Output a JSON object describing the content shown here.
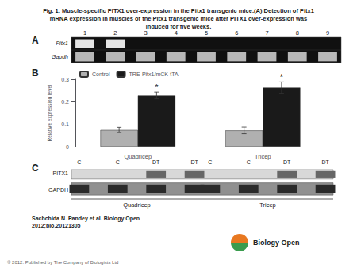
{
  "chart_data": {
    "type": "bar",
    "title": "Fig. 1. Muscle-specific PITX1 over-expression in the Pitx1 transgenic mice.(A) Detection of Pitx1\nmRNA expression in muscles of the Pitx1 transgenic mice after PITX1 over-expression was\ninduced for five weeks.",
    "categories": [
      "Quadricep",
      "Tricep"
    ],
    "series": [
      {
        "name": "Control",
        "color": "#b0b0b0",
        "values": [
          0.075,
          0.073
        ],
        "errors": [
          0.012,
          0.015
        ]
      },
      {
        "name": "TRE-Pitx1/mCK-tTA",
        "color": "#1a1a1a",
        "values": [
          0.228,
          0.263
        ],
        "errors": [
          0.015,
          0.025
        ]
      }
    ],
    "ylabel": "Relative expression level",
    "ylim": [
      0,
      0.3
    ],
    "yticks": [
      0,
      0.1,
      0.2,
      0.3
    ],
    "grid": false,
    "legend": "upper left",
    "annotations": {
      "stars": [
        {
          "text": "*",
          "category": "Quadricep",
          "series": "TRE-Pitx1/mCK-tTA"
        },
        {
          "text": "*",
          "category": "Tricep",
          "series": "TRE-Pitx1/mCK-tTA"
        }
      ],
      "panel_labels": [
        "A",
        "B",
        "C"
      ],
      "lane_numbers": [
        "1",
        "2",
        "3",
        "4",
        "5",
        "6",
        "7",
        "8",
        "9"
      ],
      "gene_labels": [
        "Pitx1",
        "Gapdh"
      ],
      "lane_labels": [
        "C",
        "C",
        "DT",
        "DT",
        "C",
        "C",
        "DT",
        "DT"
      ],
      "protein_labels": [
        "PITX1",
        "GAPDH"
      ],
      "group_labels": [
        "Quadricep",
        "Tricep"
      ],
      "citation": "Sachchida N. Pandey et al. Biology Open\n2012;bio.20121305",
      "copyright": "© 2012. Published by The Company of Biologists Ltd",
      "logo": "Biology Open"
    }
  }
}
